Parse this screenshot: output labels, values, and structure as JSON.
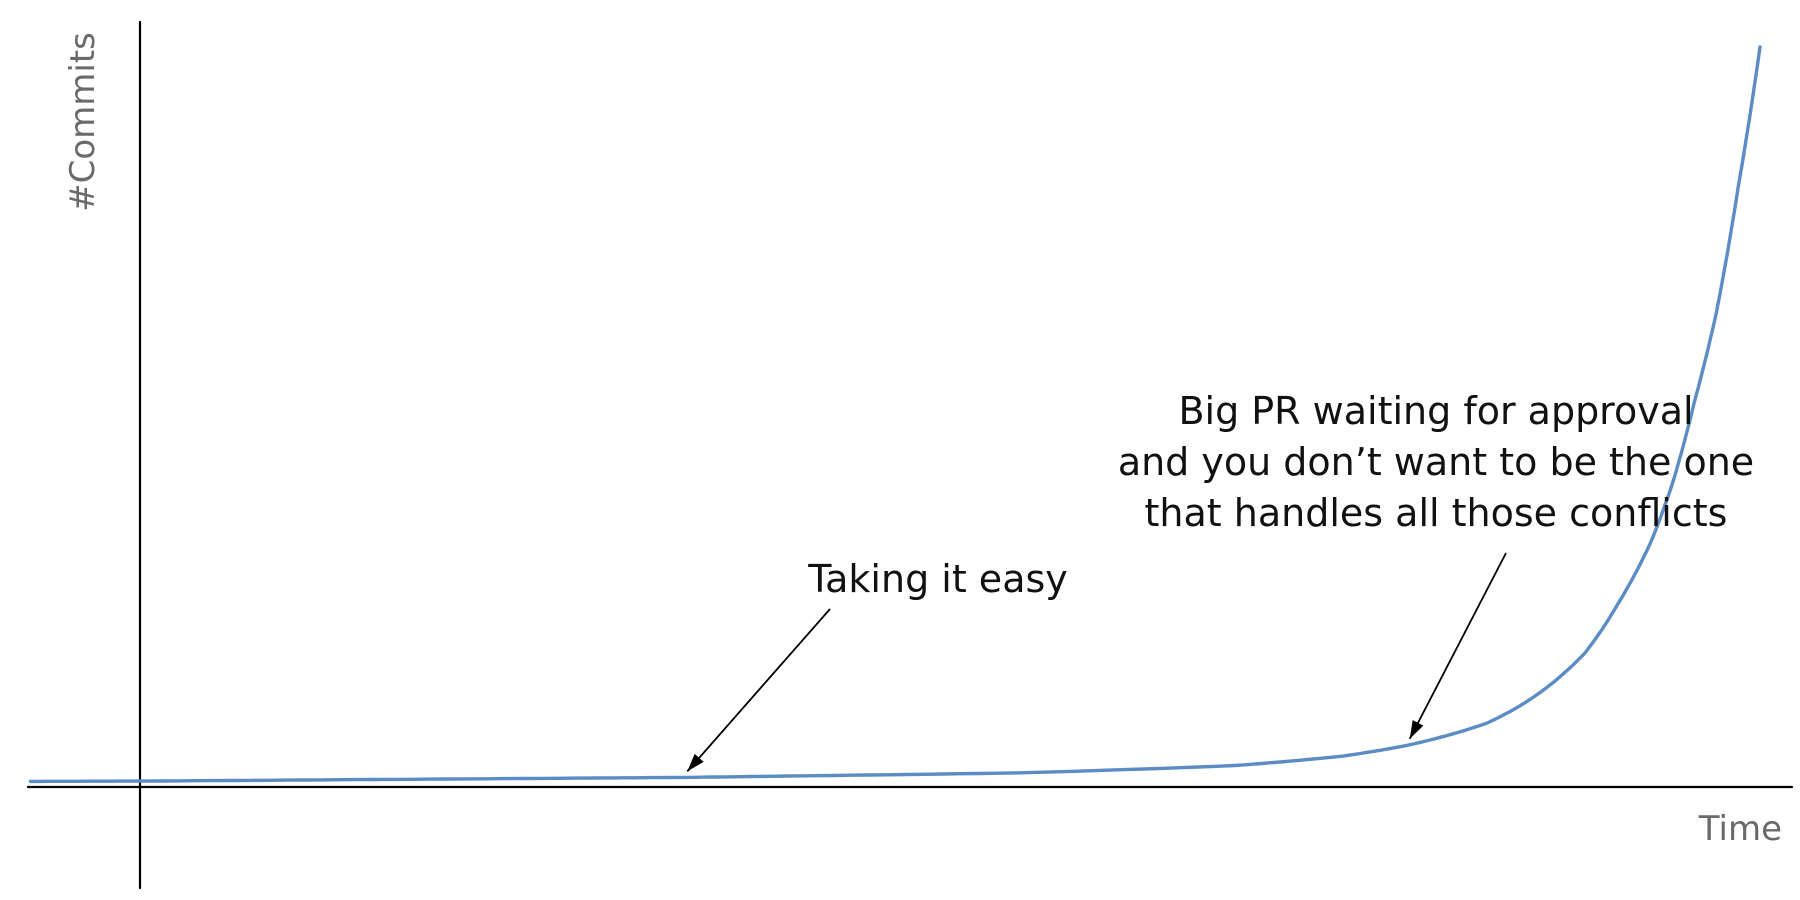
{
  "chart_data": {
    "type": "line",
    "title": "",
    "xlabel": "Time",
    "ylabel": "#Commits",
    "xlim": [
      0,
      14.8
    ],
    "ylim": [
      -0.01,
      1.0
    ],
    "grid": false,
    "legend": "none",
    "tick_labels": false,
    "series": [
      {
        "color": "#5b8cc4",
        "function": "exponential",
        "x": [
          -1.0,
          0,
          2,
          4,
          5.0,
          6,
          8,
          10,
          11,
          11.6,
          12,
          12.3,
          12.6,
          12.9,
          13.2,
          13.5,
          13.8,
          14.0,
          14.2,
          14.4,
          14.6,
          14.8
        ],
        "y": [
          0.0076,
          0.008,
          0.01,
          0.012,
          0.013,
          0.015,
          0.019,
          0.029,
          0.042,
          0.057,
          0.072,
          0.086,
          0.109,
          0.14,
          0.181,
          0.247,
          0.33,
          0.41,
          0.52,
          0.64,
          0.81,
          1.0
        ]
      }
    ],
    "annotations": [
      {
        "lines": [
          "Taking it easy"
        ],
        "point": [
          5.0,
          0.013
        ]
      },
      {
        "lines": [
          "Big PR waiting for approval",
          "and you don’t want to be the one",
          "that handles all those conflicts"
        ],
        "point": [
          11.6,
          0.057
        ]
      }
    ]
  }
}
